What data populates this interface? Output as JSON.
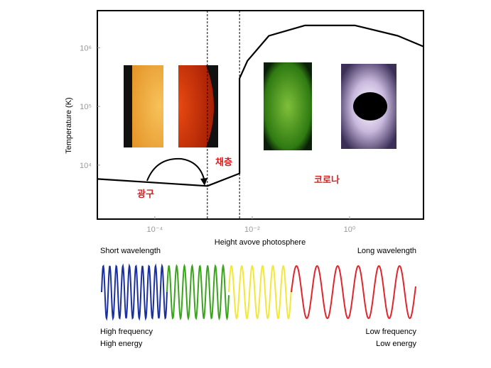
{
  "chart_data": {
    "type": "line",
    "log_x": true,
    "log_y": true,
    "xlabel": "Height avove photosphere",
    "ylabel": "Temperature (K)",
    "x": [
      6.6e-06,
      0.0012,
      0.0055,
      0.0055,
      0.008,
      0.022,
      0.12,
      1.3,
      9.8,
      33
    ],
    "values": [
      5800,
      4400,
      7200,
      300000,
      600000,
      1600000,
      2400000,
      2400000,
      1600000,
      1050000
    ],
    "color": "#000000",
    "xlim": [
      6.6e-06,
      33
    ],
    "ylim": [
      1200,
      4300000
    ],
    "xticks": [
      {
        "value": 0.0001,
        "label": "10⁻⁴"
      },
      {
        "value": 0.01,
        "label": "10⁻²"
      },
      {
        "value": 1,
        "label": "10⁰"
      }
    ],
    "yticks": [
      {
        "value": 10000,
        "label": "10⁴"
      },
      {
        "value": 100000,
        "label": "10⁵"
      },
      {
        "value": 1000000,
        "label": "10⁶"
      }
    ],
    "vlines": [
      0.0012,
      0.0055
    ],
    "annotations": [
      "광구",
      "채층",
      "코로나"
    ]
  },
  "spectrum": {
    "short": "Short wavelength",
    "long": "Long wavelength",
    "left_notes": [
      "High frequency",
      "High energy"
    ],
    "right_notes": [
      "Low frequency",
      "Low energy"
    ]
  }
}
